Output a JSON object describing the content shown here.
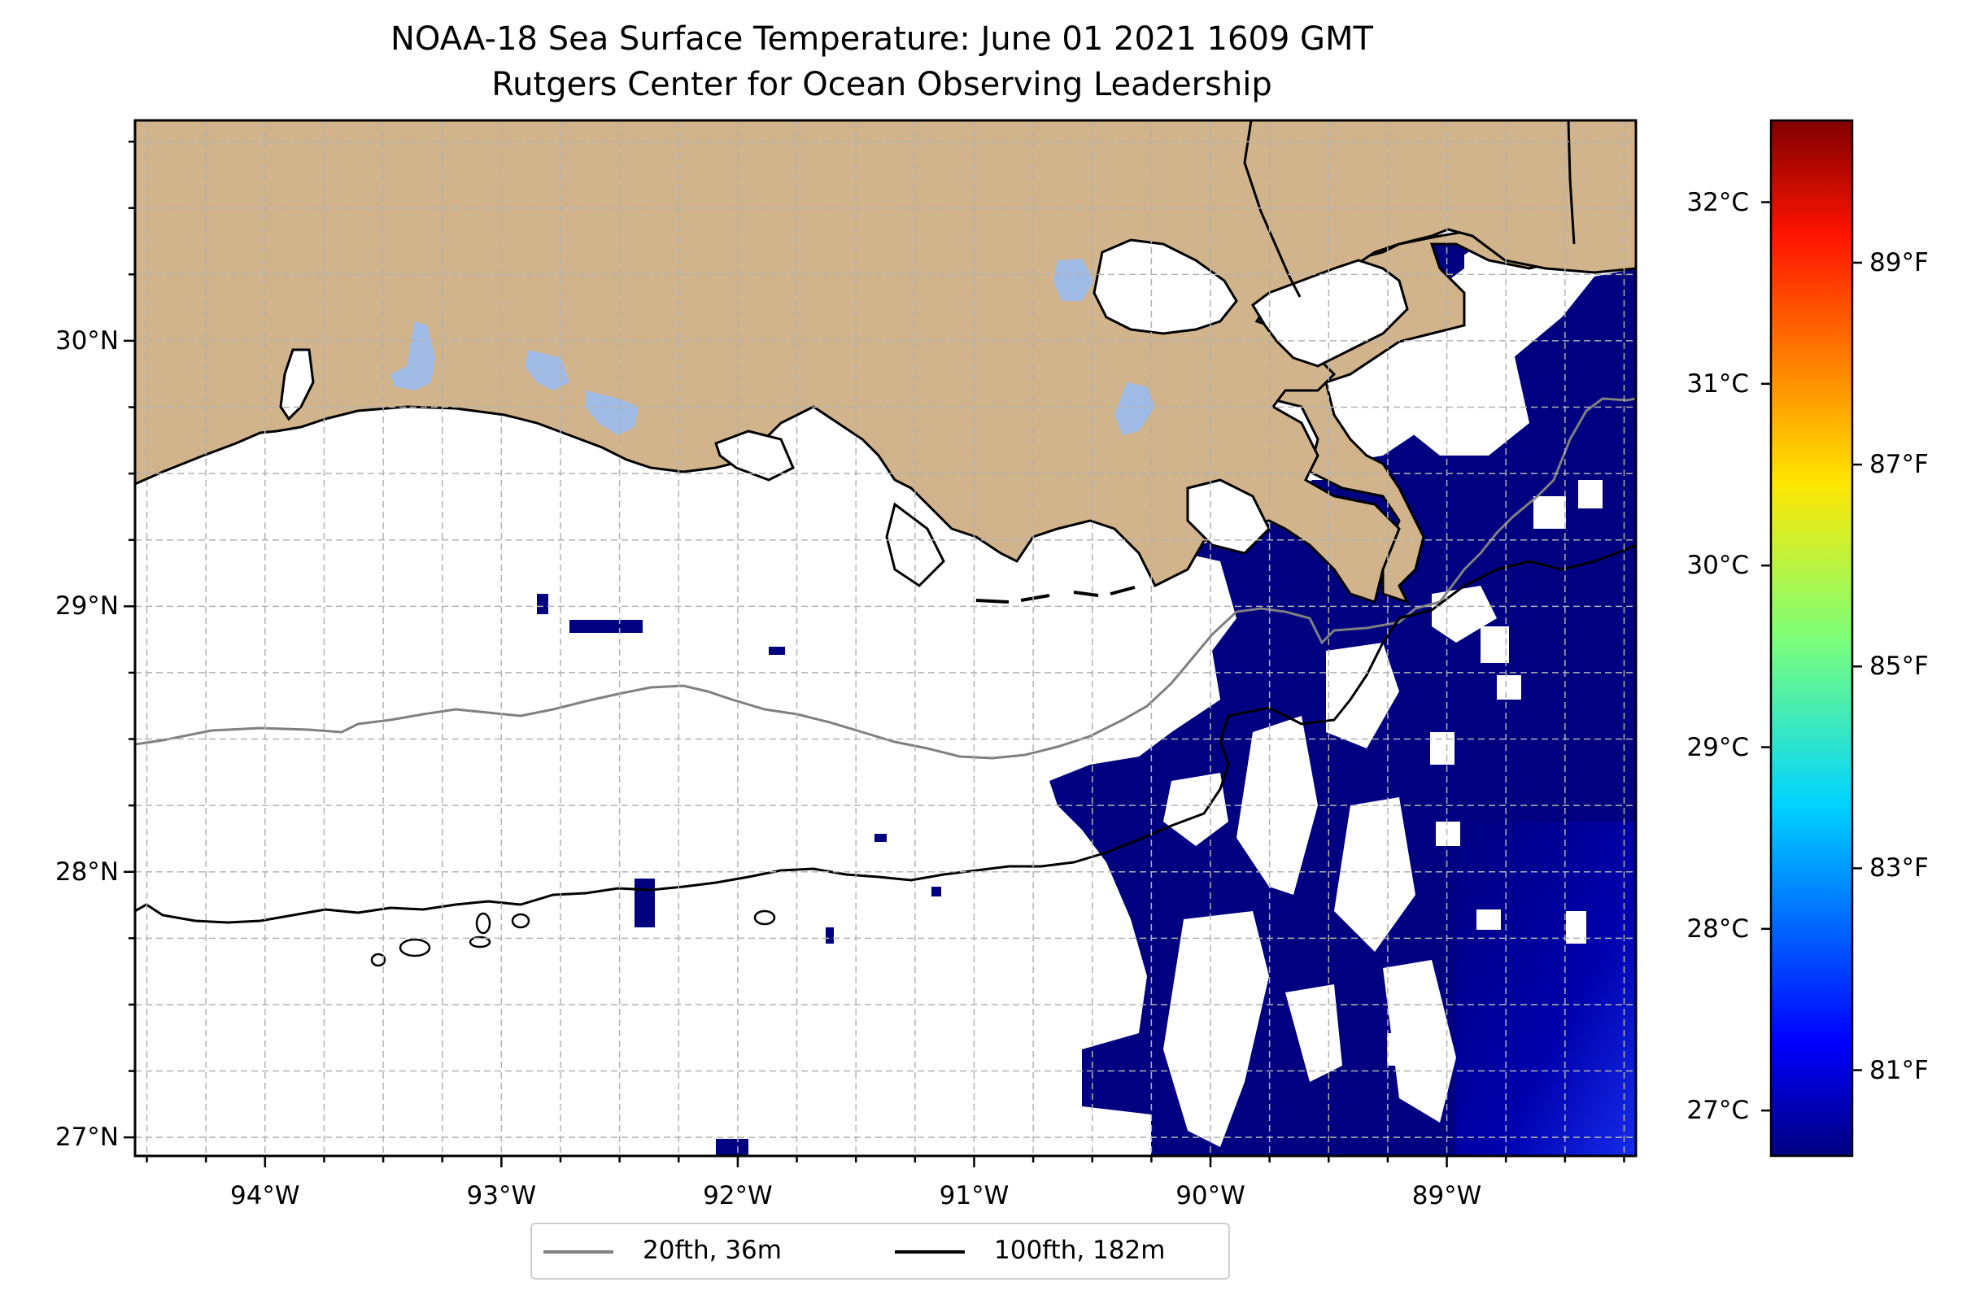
{
  "title": {
    "line1": "NOAA-18 Sea Surface Temperature: June 01 2021 1609 GMT",
    "line2": "Rutgers Center for Ocean Observing Leadership"
  },
  "map": {
    "lon_range": [
      -94.55,
      -88.2
    ],
    "lat_range": [
      26.93,
      30.83
    ],
    "lat_ticks": [
      {
        "value": 30,
        "label": "30°N"
      },
      {
        "value": 29,
        "label": "29°N"
      },
      {
        "value": 28,
        "label": "28°N"
      },
      {
        "value": 27,
        "label": "27°N"
      }
    ],
    "lon_ticks": [
      {
        "value": -94,
        "label": "94°W"
      },
      {
        "value": -93,
        "label": "93°W"
      },
      {
        "value": -92,
        "label": "92°W"
      },
      {
        "value": -91,
        "label": "91°W"
      },
      {
        "value": -90,
        "label": "90°W"
      },
      {
        "value": -89,
        "label": "89°W"
      }
    ],
    "gridlines": true,
    "colors": {
      "land": "#d2b48c",
      "lakes": "#9fbbe6",
      "ocean_sst": "#000080",
      "ocean_sst_warm": "#0a17e6",
      "no_data": "#ffffff",
      "coastline": "#000000",
      "grid": "#b3b3b3"
    }
  },
  "colorbar": {
    "celsius_ticks": [
      {
        "value": 32,
        "label": "32°C"
      },
      {
        "value": 31,
        "label": "31°C"
      },
      {
        "value": 30,
        "label": "30°C"
      },
      {
        "value": 29,
        "label": "29°C"
      },
      {
        "value": 28,
        "label": "28°C"
      },
      {
        "value": 27,
        "label": "27°C"
      }
    ],
    "fahrenheit_ticks": [
      {
        "value": 89,
        "label": "89°F"
      },
      {
        "value": 87,
        "label": "87°F"
      },
      {
        "value": 85,
        "label": "85°F"
      },
      {
        "value": 83,
        "label": "83°F"
      },
      {
        "value": 81,
        "label": "81°F"
      }
    ],
    "range_c": [
      26.75,
      32.45
    ],
    "colormap": "jet"
  },
  "legend": {
    "items": [
      {
        "label": "20fth, 36m",
        "color": "#808080"
      },
      {
        "label": "100fth, 182m",
        "color": "#000000"
      }
    ]
  }
}
